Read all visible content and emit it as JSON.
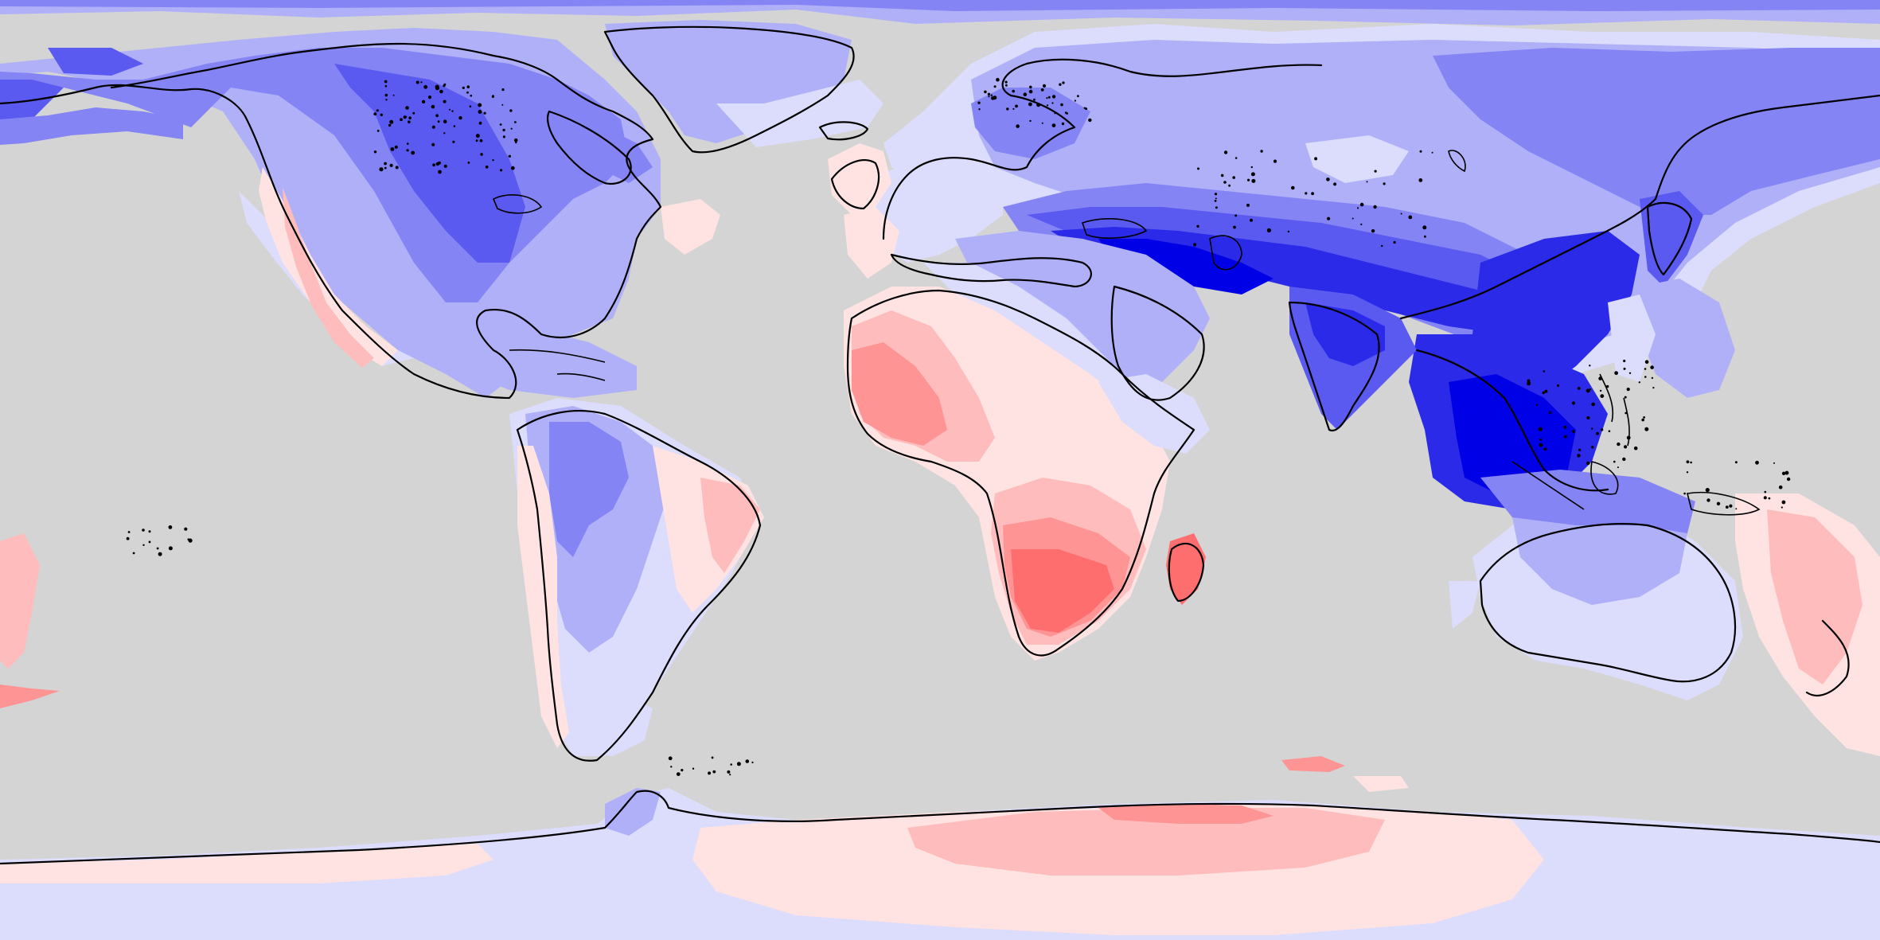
{
  "map": {
    "projection": "equirectangular",
    "extent": {
      "lon": [
        -180,
        180
      ],
      "lat": [
        -90,
        90
      ]
    },
    "ocean_color": "#d4d4d4",
    "coastline_color": "#000000",
    "palette": {
      "b6": "#0000e6",
      "b5": "#2a2ae8",
      "b4": "#5a5af0",
      "b3": "#8484f4",
      "b2": "#b0b0f8",
      "b1": "#dcdcfc",
      "r1": "#ffe2e2",
      "r2": "#ffbcbc",
      "r3": "#ff9494",
      "r4": "#ff6e6e"
    }
  }
}
